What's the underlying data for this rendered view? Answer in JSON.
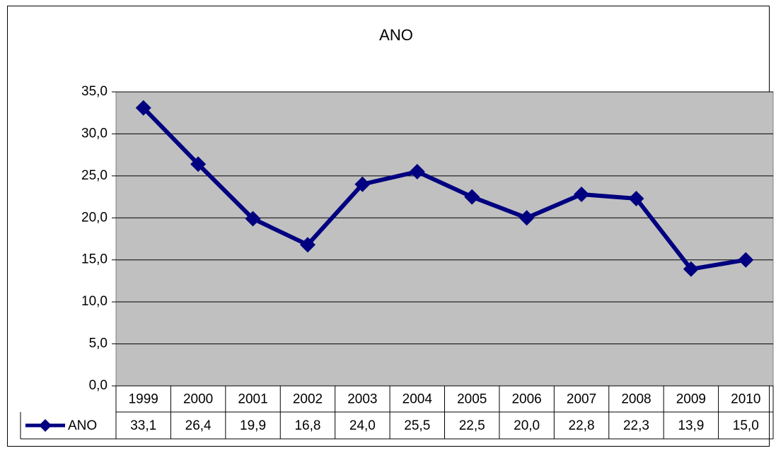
{
  "chart_data": {
    "type": "line",
    "title": "ANO",
    "categories": [
      "1999",
      "2000",
      "2001",
      "2002",
      "2003",
      "2004",
      "2005",
      "2006",
      "2007",
      "2008",
      "2009",
      "2010"
    ],
    "series": [
      {
        "name": "ANO",
        "color": "#000080",
        "values": [
          33.1,
          26.4,
          19.9,
          16.8,
          24.0,
          25.5,
          22.5,
          20.0,
          22.8,
          22.3,
          13.9,
          15.0
        ],
        "value_labels": [
          "33,1",
          "26,4",
          "19,9",
          "16,8",
          "24,0",
          "25,5",
          "22,5",
          "20,0",
          "22,8",
          "22,3",
          "13,9",
          "15,0"
        ]
      }
    ],
    "ylim": [
      0,
      35
    ],
    "yticks": [
      {
        "value": 0,
        "label": "0,0"
      },
      {
        "value": 5,
        "label": "5,0"
      },
      {
        "value": 10,
        "label": "10,0"
      },
      {
        "value": 15,
        "label": "15,0"
      },
      {
        "value": 20,
        "label": "20,0"
      },
      {
        "value": 25,
        "label": "25,0"
      },
      {
        "value": 30,
        "label": "30,0"
      },
      {
        "value": 35,
        "label": "35,0"
      }
    ],
    "grid": true,
    "plot_background": "#c0c0c0"
  }
}
